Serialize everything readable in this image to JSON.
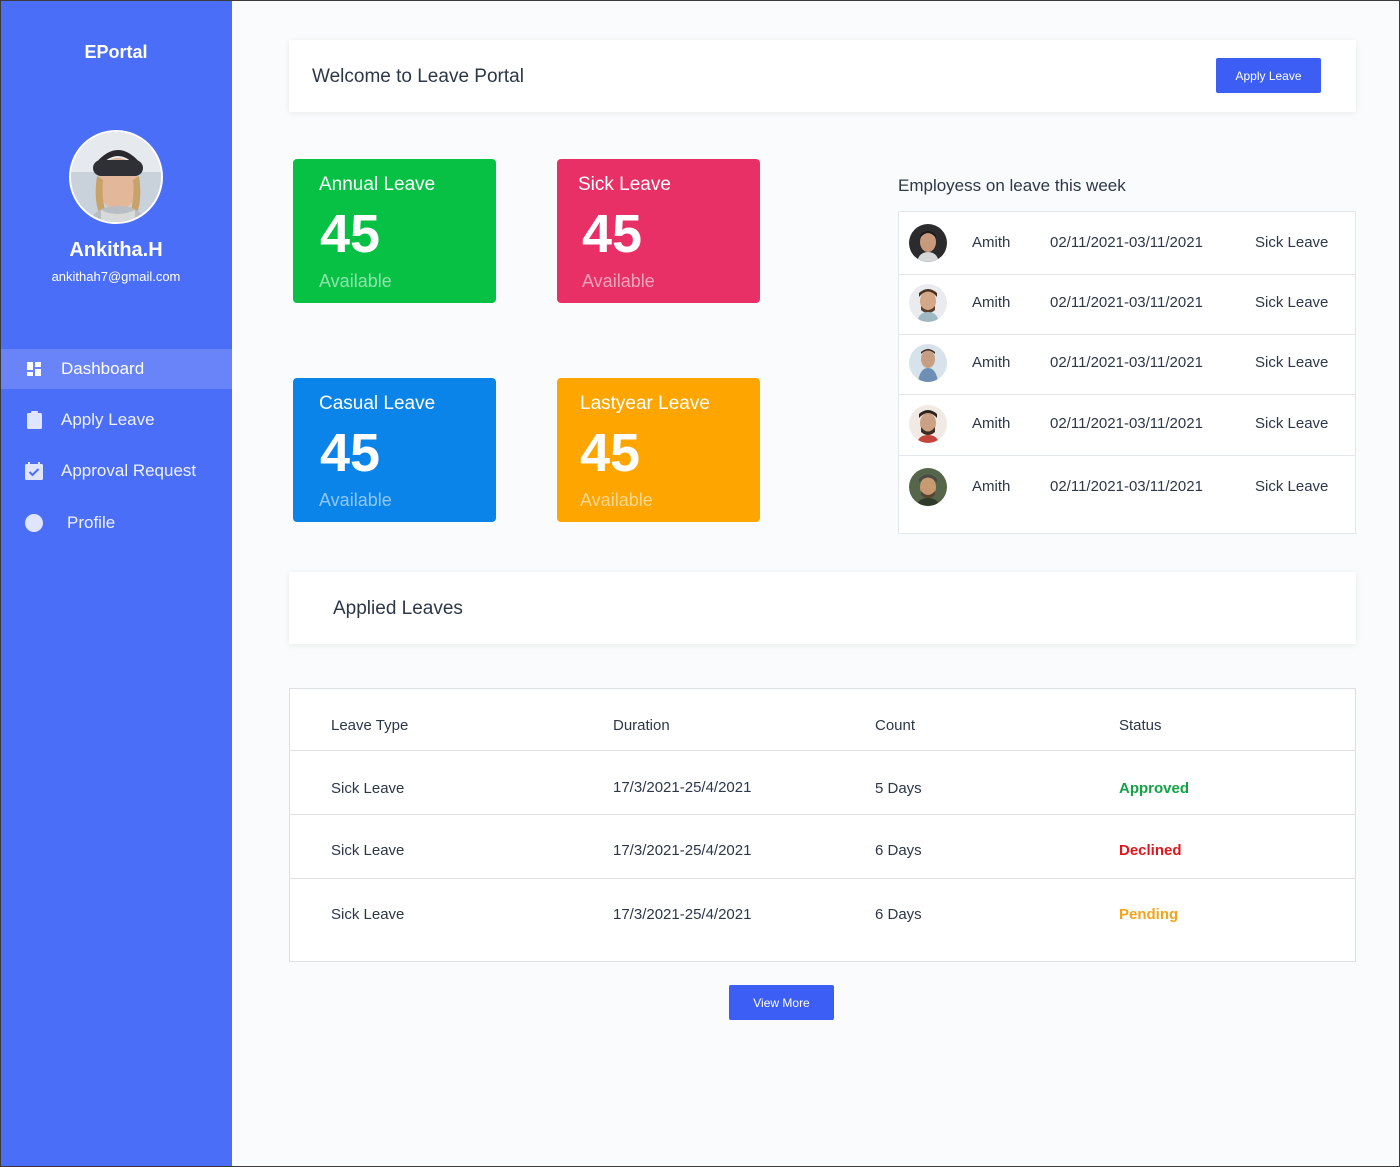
{
  "sidebar": {
    "brand": "EPortal",
    "user": {
      "name": "Ankitha.H",
      "email": "ankithah7@gmail.com"
    },
    "items": [
      {
        "label": "Dashboard",
        "icon": "dashboard-icon",
        "active": true
      },
      {
        "label": "Apply Leave",
        "icon": "clipboard-icon",
        "active": false
      },
      {
        "label": "Approval Request",
        "icon": "calendar-check-icon",
        "active": false
      },
      {
        "label": "Profile",
        "icon": "user-circle-icon",
        "active": false
      }
    ],
    "color": "#4a6ef7"
  },
  "header": {
    "title": "Welcome to Leave Portal",
    "apply_button": "Apply Leave"
  },
  "cards": [
    {
      "title": "Annual Leave",
      "value": "45",
      "caption": "Available",
      "color": "#06c144"
    },
    {
      "title": "Sick Leave",
      "value": "45",
      "caption": "Available",
      "color": "#e83067"
    },
    {
      "title": "Casual Leave",
      "value": "45",
      "caption": "Available",
      "color": "#0a84e8"
    },
    {
      "title": "Lastyear Leave",
      "value": "45",
      "caption": "Available",
      "color": "#fea500"
    }
  ],
  "employees_on_leave": {
    "title": "Employess on leave this week",
    "rows": [
      {
        "name": "Amith",
        "dates": "02/11/2021-03/11/2021",
        "type": "Sick Leave"
      },
      {
        "name": "Amith",
        "dates": "02/11/2021-03/11/2021",
        "type": "Sick Leave"
      },
      {
        "name": "Amith",
        "dates": "02/11/2021-03/11/2021",
        "type": "Sick Leave"
      },
      {
        "name": "Amith",
        "dates": "02/11/2021-03/11/2021",
        "type": "Sick Leave"
      },
      {
        "name": "Amith",
        "dates": "02/11/2021-03/11/2021",
        "type": "Sick Leave"
      }
    ]
  },
  "applied_leaves": {
    "title": "Applied Leaves",
    "columns": [
      "Leave Type",
      "Duration",
      "Count",
      "Status"
    ],
    "rows": [
      {
        "type": "Sick Leave",
        "duration": "17/3/2021-25/4/2021",
        "count": "5 Days",
        "status": "Approved"
      },
      {
        "type": "Sick Leave",
        "duration": "17/3/2021-25/4/2021",
        "count": "6 Days",
        "status": "Declined"
      },
      {
        "type": "Sick Leave",
        "duration": "17/3/2021-25/4/2021",
        "count": "6 Days",
        "status": "Pending"
      }
    ],
    "view_more": "View More"
  }
}
